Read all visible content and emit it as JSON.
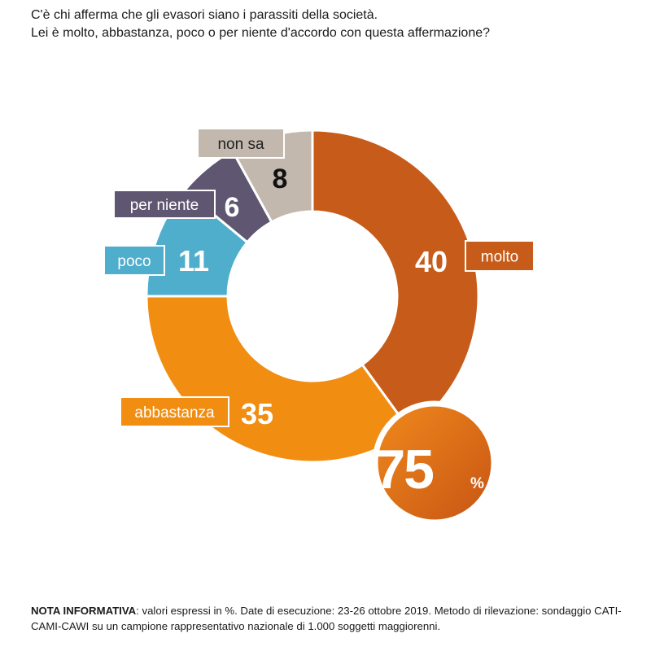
{
  "question": {
    "line1": "C'è chi afferma che gli evasori siano i parassiti della società.",
    "line2": "Lei è molto, abbastanza, poco o per niente d'accordo con questa affermazione?"
  },
  "chart_data": {
    "type": "pie",
    "variant": "donut",
    "unit": "%",
    "slices": [
      {
        "label": "molto",
        "value": 40,
        "color": "#C75B19"
      },
      {
        "label": "abbastanza",
        "value": 35,
        "color": "#F18E12"
      },
      {
        "label": "poco",
        "value": 11,
        "color": "#4EAECB"
      },
      {
        "label": "per niente",
        "value": 6,
        "color": "#5F5771"
      },
      {
        "label": "non sa",
        "value": 8,
        "color": "#C2B8AE"
      }
    ],
    "highlight": {
      "value": "75",
      "unit": "%",
      "color": "#D5650F"
    }
  },
  "note": {
    "label": "NOTA INFORMATIVA",
    "text": ": valori espressi in %. Date di esecuzione: 23-26 ottobre 2019. Metodo di rilevazione: sondaggio CATI-CAMI-CAWI su un campione rappresentativo nazionale di 1.000 soggetti maggiorenni."
  }
}
